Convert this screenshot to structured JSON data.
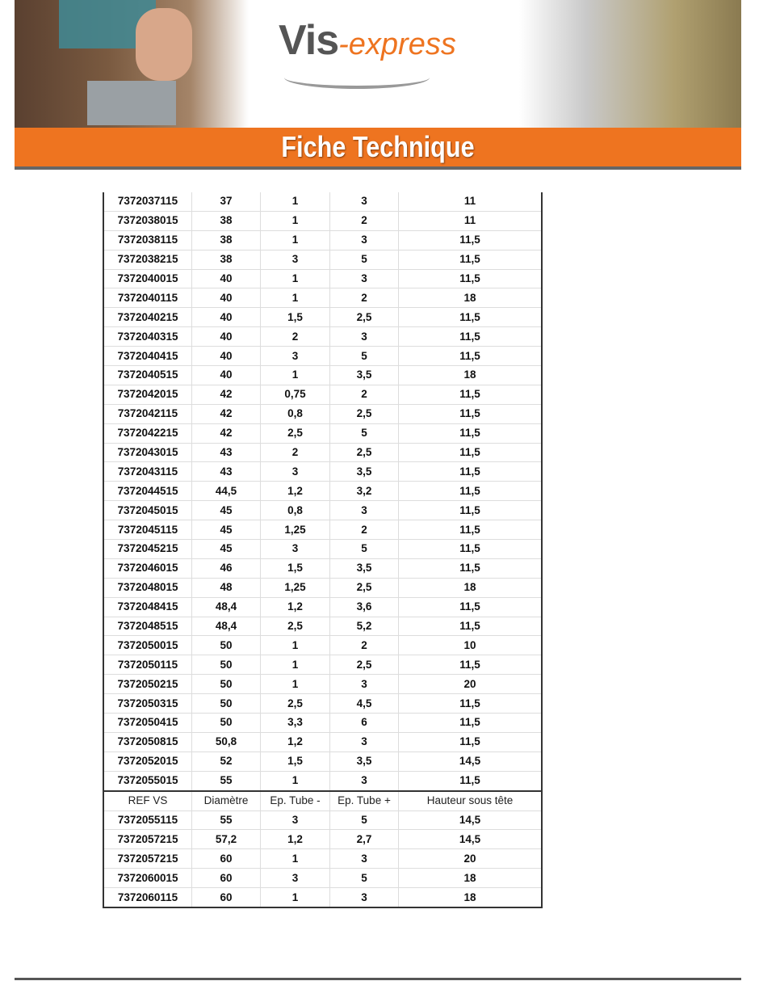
{
  "header": {
    "logo_main": "Vis",
    "logo_accent": "-express",
    "title": "Fiche Technique"
  },
  "table": {
    "columns": [
      "REF VS",
      "Diamètre",
      "Ep. Tube -",
      "Ep. Tube +",
      "Hauteur sous tête"
    ],
    "rows_before_header": [
      [
        "7372037115",
        "37",
        "1",
        "3",
        "11"
      ],
      [
        "7372038015",
        "38",
        "1",
        "2",
        "11"
      ],
      [
        "7372038115",
        "38",
        "1",
        "3",
        "11,5"
      ],
      [
        "7372038215",
        "38",
        "3",
        "5",
        "11,5"
      ],
      [
        "7372040015",
        "40",
        "1",
        "3",
        "11,5"
      ],
      [
        "7372040115",
        "40",
        "1",
        "2",
        "18"
      ],
      [
        "7372040215",
        "40",
        "1,5",
        "2,5",
        "11,5"
      ],
      [
        "7372040315",
        "40",
        "2",
        "3",
        "11,5"
      ],
      [
        "7372040415",
        "40",
        "3",
        "5",
        "11,5"
      ],
      [
        "7372040515",
        "40",
        "1",
        "3,5",
        "18"
      ],
      [
        "7372042015",
        "42",
        "0,75",
        "2",
        "11,5"
      ],
      [
        "7372042115",
        "42",
        "0,8",
        "2,5",
        "11,5"
      ],
      [
        "7372042215",
        "42",
        "2,5",
        "5",
        "11,5"
      ],
      [
        "7372043015",
        "43",
        "2",
        "2,5",
        "11,5"
      ],
      [
        "7372043115",
        "43",
        "3",
        "3,5",
        "11,5"
      ],
      [
        "7372044515",
        "44,5",
        "1,2",
        "3,2",
        "11,5"
      ],
      [
        "7372045015",
        "45",
        "0,8",
        "3",
        "11,5"
      ],
      [
        "7372045115",
        "45",
        "1,25",
        "2",
        "11,5"
      ],
      [
        "7372045215",
        "45",
        "3",
        "5",
        "11,5"
      ],
      [
        "7372046015",
        "46",
        "1,5",
        "3,5",
        "11,5"
      ],
      [
        "7372048015",
        "48",
        "1,25",
        "2,5",
        "18"
      ],
      [
        "7372048415",
        "48,4",
        "1,2",
        "3,6",
        "11,5"
      ],
      [
        "7372048515",
        "48,4",
        "2,5",
        "5,2",
        "11,5"
      ],
      [
        "7372050015",
        "50",
        "1",
        "2",
        "10"
      ],
      [
        "7372050115",
        "50",
        "1",
        "2,5",
        "11,5"
      ],
      [
        "7372050215",
        "50",
        "1",
        "3",
        "20"
      ],
      [
        "7372050315",
        "50",
        "2,5",
        "4,5",
        "11,5"
      ],
      [
        "7372050415",
        "50",
        "3,3",
        "6",
        "11,5"
      ],
      [
        "7372050815",
        "50,8",
        "1,2",
        "3",
        "11,5"
      ],
      [
        "7372052015",
        "52",
        "1,5",
        "3,5",
        "14,5"
      ],
      [
        "7372055015",
        "55",
        "1",
        "3",
        "11,5"
      ]
    ],
    "rows_after_header": [
      [
        "7372055115",
        "55",
        "3",
        "5",
        "14,5"
      ],
      [
        "7372057215",
        "57,2",
        "1,2",
        "2,7",
        "14,5"
      ],
      [
        "7372057215",
        "60",
        "1",
        "3",
        "20"
      ],
      [
        "7372060015",
        "60",
        "3",
        "5",
        "18"
      ],
      [
        "7372060115",
        "60",
        "1",
        "3",
        "18"
      ]
    ]
  },
  "colors": {
    "accent": "#ee7420",
    "logo_gray": "#555555"
  }
}
